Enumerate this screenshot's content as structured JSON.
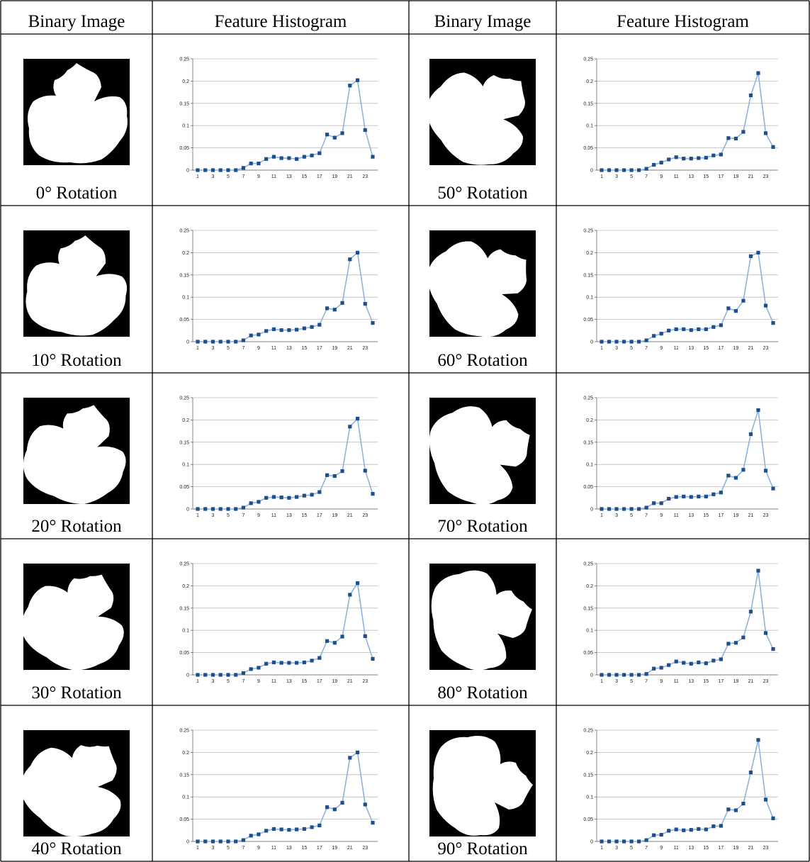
{
  "table": {
    "headers": [
      "Binary Image",
      "Feature Histogram",
      "Binary Image",
      "Feature Histogram"
    ]
  },
  "chart_data": [
    {
      "type": "line",
      "title": "0° Rotation",
      "color": "#1c4f8c",
      "ylim": [
        0,
        0.25
      ],
      "yticks": [
        0,
        0.05,
        0.1,
        0.15,
        0.2,
        0.25
      ],
      "grid": true,
      "categories": [
        "1",
        null,
        "3",
        null,
        "5",
        null,
        "7",
        null,
        "9",
        null,
        "11",
        null,
        "13",
        null,
        "15",
        null,
        "17",
        null,
        "19",
        null,
        "21",
        null,
        "23",
        null
      ],
      "values": [
        0,
        0,
        0,
        0,
        0,
        0,
        0.005,
        0.015,
        0.015,
        0.025,
        0.03,
        0.027,
        0.027,
        0.025,
        0.03,
        0.033,
        0.038,
        0.08,
        0.073,
        0.083,
        0.19,
        0.202,
        0.09,
        0.03
      ]
    },
    {
      "type": "line",
      "title": "10° Rotation",
      "color": "#1c4f8c",
      "ylim": [
        0,
        0.25
      ],
      "yticks": [
        0,
        0.05,
        0.1,
        0.15,
        0.2,
        0.25
      ],
      "grid": true,
      "categories": [
        "1",
        null,
        "3",
        null,
        "5",
        null,
        "7",
        null,
        "9",
        null,
        "11",
        null,
        "13",
        null,
        "15",
        null,
        "17",
        null,
        "19",
        null,
        "21",
        null,
        "23",
        null
      ],
      "values": [
        0,
        0,
        0,
        0,
        0,
        0,
        0.003,
        0.014,
        0.016,
        0.024,
        0.028,
        0.026,
        0.026,
        0.027,
        0.03,
        0.033,
        0.038,
        0.075,
        0.072,
        0.087,
        0.185,
        0.2,
        0.085,
        0.042
      ]
    },
    {
      "type": "line",
      "title": "20° Rotation",
      "color": "#1c4f8c",
      "ylim": [
        0,
        0.25
      ],
      "yticks": [
        0,
        0.05,
        0.1,
        0.15,
        0.2,
        0.25
      ],
      "grid": true,
      "categories": [
        "1",
        null,
        "3",
        null,
        "5",
        null,
        "7",
        null,
        "9",
        null,
        "11",
        null,
        "13",
        null,
        "15",
        null,
        "17",
        null,
        "19",
        null,
        "21",
        null,
        "23",
        null
      ],
      "values": [
        0,
        0,
        0,
        0,
        0,
        0,
        0.003,
        0.013,
        0.016,
        0.025,
        0.027,
        0.026,
        0.025,
        0.027,
        0.03,
        0.032,
        0.038,
        0.076,
        0.074,
        0.085,
        0.185,
        0.203,
        0.086,
        0.034
      ]
    },
    {
      "type": "line",
      "title": "30° Rotation",
      "color": "#1c4f8c",
      "ylim": [
        0,
        0.25
      ],
      "yticks": [
        0,
        0.05,
        0.1,
        0.15,
        0.2,
        0.25
      ],
      "grid": true,
      "categories": [
        "1",
        null,
        "3",
        null,
        "5",
        null,
        "7",
        null,
        "9",
        null,
        "11",
        null,
        "13",
        null,
        "15",
        null,
        "17",
        null,
        "19",
        null,
        "21",
        null,
        "23",
        null
      ],
      "values": [
        0,
        0,
        0,
        0,
        0,
        0,
        0.004,
        0.013,
        0.016,
        0.025,
        0.028,
        0.027,
        0.027,
        0.027,
        0.028,
        0.032,
        0.038,
        0.076,
        0.072,
        0.086,
        0.18,
        0.206,
        0.087,
        0.036
      ]
    },
    {
      "type": "line",
      "title": "40° Rotation",
      "color": "#1c4f8c",
      "ylim": [
        0,
        0.25
      ],
      "yticks": [
        0,
        0.05,
        0.1,
        0.15,
        0.2,
        0.25
      ],
      "grid": true,
      "categories": [
        "1",
        null,
        "3",
        null,
        "5",
        null,
        "7",
        null,
        "9",
        null,
        "11",
        null,
        "13",
        null,
        "15",
        null,
        "17",
        null,
        "19",
        null,
        "21",
        null,
        "23",
        null
      ],
      "values": [
        0,
        0,
        0,
        0,
        0,
        0,
        0.003,
        0.013,
        0.016,
        0.024,
        0.028,
        0.027,
        0.026,
        0.027,
        0.028,
        0.032,
        0.036,
        0.077,
        0.072,
        0.087,
        0.188,
        0.2,
        0.083,
        0.042
      ]
    },
    {
      "type": "line",
      "title": "50° Rotation",
      "color": "#1c4f8c",
      "ylim": [
        0,
        0.25
      ],
      "yticks": [
        0,
        0.05,
        0.1,
        0.15,
        0.2,
        0.25
      ],
      "grid": true,
      "categories": [
        "1",
        null,
        "3",
        null,
        "5",
        null,
        "7",
        null,
        "9",
        null,
        "11",
        null,
        "13",
        null,
        "15",
        null,
        "17",
        null,
        "19",
        null,
        "21",
        null,
        "23",
        null
      ],
      "values": [
        0,
        0,
        0,
        0,
        0,
        0,
        0.003,
        0.012,
        0.017,
        0.024,
        0.029,
        0.026,
        0.026,
        0.027,
        0.028,
        0.033,
        0.035,
        0.072,
        0.071,
        0.086,
        0.168,
        0.218,
        0.083,
        0.052
      ]
    },
    {
      "type": "line",
      "title": "60° Rotation",
      "color": "#1c4f8c",
      "ylim": [
        0,
        0.25
      ],
      "yticks": [
        0,
        0.05,
        0.1,
        0.15,
        0.2,
        0.25
      ],
      "grid": true,
      "categories": [
        "1",
        null,
        "3",
        null,
        "5",
        null,
        "7",
        null,
        "9",
        null,
        "11",
        null,
        "13",
        null,
        "15",
        null,
        "17",
        null,
        "19",
        null,
        "21",
        null,
        "23",
        null
      ],
      "values": [
        0,
        0,
        0,
        0,
        0,
        0,
        0.003,
        0.013,
        0.018,
        0.025,
        0.028,
        0.028,
        0.026,
        0.028,
        0.028,
        0.033,
        0.037,
        0.075,
        0.069,
        0.092,
        0.192,
        0.2,
        0.081,
        0.042
      ]
    },
    {
      "type": "line",
      "title": "70° Rotation",
      "color": "#1c4f8c",
      "ylim": [
        0,
        0.25
      ],
      "yticks": [
        0,
        0.05,
        0.1,
        0.15,
        0.2,
        0.25
      ],
      "grid": true,
      "categories": [
        "1",
        null,
        "3",
        null,
        "5",
        null,
        "7",
        null,
        "9",
        null,
        "11",
        null,
        "13",
        null,
        "15",
        null,
        "17",
        null,
        "19",
        null,
        "21",
        null,
        "23",
        null
      ],
      "values": [
        0,
        0,
        0,
        0,
        0,
        0,
        0.003,
        0.013,
        0.013,
        0.023,
        0.027,
        0.028,
        0.027,
        0.028,
        0.028,
        0.033,
        0.037,
        0.075,
        0.07,
        0.088,
        0.168,
        0.222,
        0.086,
        0.046
      ]
    },
    {
      "type": "line",
      "title": "80° Rotation",
      "color": "#1c4f8c",
      "ylim": [
        0,
        0.25
      ],
      "yticks": [
        0,
        0.05,
        0.1,
        0.15,
        0.2,
        0.25
      ],
      "grid": true,
      "categories": [
        "1",
        null,
        "3",
        null,
        "5",
        null,
        "7",
        null,
        "9",
        null,
        "11",
        null,
        "13",
        null,
        "15",
        null,
        "17",
        null,
        "19",
        null,
        "21",
        null,
        "23",
        null
      ],
      "values": [
        0,
        0,
        0,
        0,
        0,
        0,
        0.002,
        0.014,
        0.016,
        0.022,
        0.03,
        0.027,
        0.025,
        0.028,
        0.026,
        0.032,
        0.035,
        0.07,
        0.072,
        0.084,
        0.142,
        0.234,
        0.094,
        0.058
      ]
    },
    {
      "type": "line",
      "title": "90° Rotation",
      "color": "#1c4f8c",
      "ylim": [
        0,
        0.25
      ],
      "yticks": [
        0,
        0.05,
        0.1,
        0.15,
        0.2,
        0.25
      ],
      "grid": true,
      "categories": [
        "1",
        null,
        "3",
        null,
        "5",
        null,
        "7",
        null,
        "9",
        null,
        "11",
        null,
        "13",
        null,
        "15",
        null,
        "17",
        null,
        "19",
        null,
        "21",
        null,
        "23",
        null
      ],
      "values": [
        0,
        0,
        0,
        0,
        0,
        0,
        0.003,
        0.014,
        0.015,
        0.024,
        0.027,
        0.025,
        0.026,
        0.028,
        0.027,
        0.034,
        0.035,
        0.072,
        0.07,
        0.085,
        0.155,
        0.228,
        0.094,
        0.052
      ]
    }
  ]
}
